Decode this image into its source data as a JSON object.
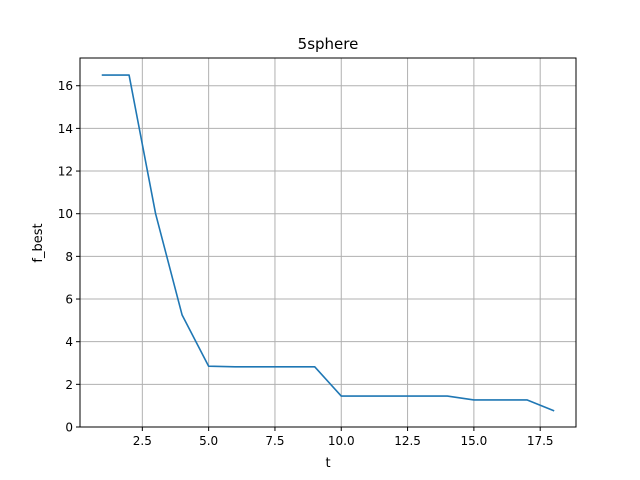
{
  "chart_data": {
    "type": "line",
    "title": "5sphere",
    "xlabel": "t",
    "ylabel": "f_best",
    "xlim": [
      0.15,
      18.85
    ],
    "ylim": [
      0,
      17.3
    ],
    "xticks": [
      2.5,
      5.0,
      7.5,
      10.0,
      12.5,
      15.0,
      17.5
    ],
    "xtick_labels": [
      "2.5",
      "5.0",
      "7.5",
      "10.0",
      "12.5",
      "15.0",
      "17.5"
    ],
    "yticks": [
      0,
      2,
      4,
      6,
      8,
      10,
      12,
      14,
      16
    ],
    "ytick_labels": [
      "0",
      "2",
      "4",
      "6",
      "8",
      "10",
      "12",
      "14",
      "16"
    ],
    "grid": true,
    "legend": "none",
    "series": [
      {
        "color": "#1f77b4",
        "x": [
          1,
          2,
          3,
          4,
          5,
          6,
          7,
          8,
          9,
          10,
          11,
          12,
          13,
          14,
          15,
          16,
          17,
          18
        ],
        "y": [
          16.5,
          16.5,
          10.0,
          5.25,
          2.85,
          2.82,
          2.82,
          2.82,
          2.82,
          1.45,
          1.45,
          1.45,
          1.45,
          1.45,
          1.27,
          1.27,
          1.27,
          0.77
        ]
      }
    ]
  }
}
